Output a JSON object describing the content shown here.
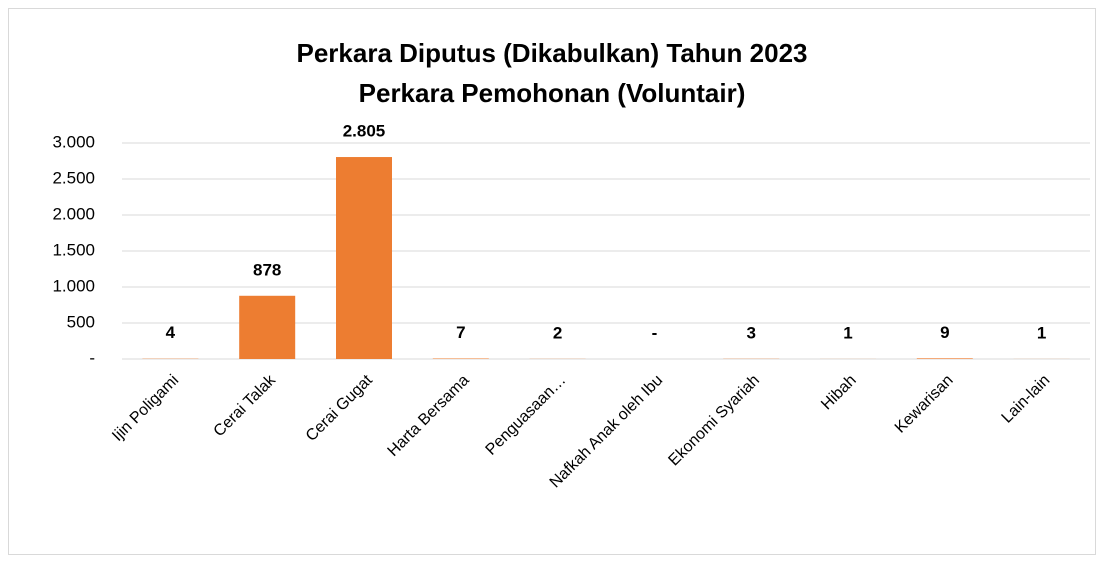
{
  "chart_data": {
    "type": "bar",
    "title": "Perkara Diputus (Dikabulkan) Tahun 2023",
    "subtitle": "Perkara Pemohonan (Voluntair)",
    "categories": [
      "Ijin Poligami",
      "Cerai Talak",
      "Cerai Gugat",
      "Harta Bersama",
      "Penguasaan…",
      "Nafkah Anak oleh Ibu",
      "Ekonomi Syariah",
      "Hibah",
      "Kewarisan",
      "Lain-lain"
    ],
    "values": [
      4,
      878,
      2805,
      7,
      2,
      0,
      3,
      1,
      9,
      1
    ],
    "value_labels": [
      "4",
      "878",
      "2.805",
      "7",
      "2",
      "-",
      "3",
      "1",
      "9",
      "1"
    ],
    "color": "#ed7d31",
    "ylim": [
      0,
      3000
    ],
    "yticks": [
      {
        "value": 0,
        "label": "-"
      },
      500,
      {
        "value": 1000,
        "label": "1.000"
      },
      {
        "value": 1500,
        "label": "1.500"
      },
      {
        "value": 2000,
        "label": "2.000"
      },
      {
        "value": 2500,
        "label": "2.500"
      },
      {
        "value": 3000,
        "label": "3.000"
      }
    ],
    "grid": true
  }
}
